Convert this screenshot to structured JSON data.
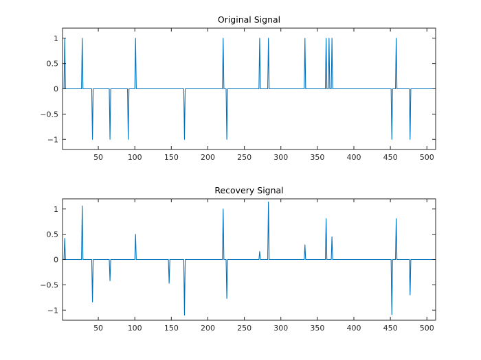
{
  "chart_data": [
    {
      "type": "line",
      "title": "Original Signal",
      "xlabel": "",
      "ylabel": "",
      "xlim": [
        1,
        512
      ],
      "ylim": [
        -1.2,
        1.2
      ],
      "xticks": [
        50,
        100,
        150,
        200,
        250,
        300,
        350,
        400,
        450,
        500
      ],
      "xtick_labels": [
        "50",
        "100",
        "150",
        "200",
        "250",
        "300",
        "350",
        "400",
        "450",
        "500"
      ],
      "yticks": [
        -1,
        -0.5,
        0,
        0.5,
        1
      ],
      "ytick_labels": [
        "−1",
        "−0.5",
        "0",
        "0.5",
        "1"
      ],
      "grid": false,
      "color": "#0072BD",
      "series": [
        {
          "name": "Original Signal",
          "spikes": [
            {
              "x": 4,
              "y": 1
            },
            {
              "x": 28,
              "y": 1
            },
            {
              "x": 42,
              "y": -1
            },
            {
              "x": 66,
              "y": -1
            },
            {
              "x": 91,
              "y": -1
            },
            {
              "x": 101,
              "y": 1
            },
            {
              "x": 168,
              "y": -1
            },
            {
              "x": 221,
              "y": 1
            },
            {
              "x": 226,
              "y": -1
            },
            {
              "x": 271,
              "y": 1
            },
            {
              "x": 283,
              "y": 1
            },
            {
              "x": 333,
              "y": 1
            },
            {
              "x": 362,
              "y": 1
            },
            {
              "x": 366,
              "y": 1
            },
            {
              "x": 370,
              "y": 1
            },
            {
              "x": 452,
              "y": -1
            },
            {
              "x": 458,
              "y": 1
            },
            {
              "x": 477,
              "y": -1
            }
          ]
        }
      ]
    },
    {
      "type": "line",
      "title": "Recovery Signal",
      "xlabel": "",
      "ylabel": "",
      "xlim": [
        1,
        512
      ],
      "ylim": [
        -1.2,
        1.2
      ],
      "xticks": [
        50,
        100,
        150,
        200,
        250,
        300,
        350,
        400,
        450,
        500
      ],
      "xtick_labels": [
        "50",
        "100",
        "150",
        "200",
        "250",
        "300",
        "350",
        "400",
        "450",
        "500"
      ],
      "yticks": [
        -1,
        -0.5,
        0,
        0.5,
        1
      ],
      "ytick_labels": [
        "−1",
        "−0.5",
        "0",
        "0.5",
        "1"
      ],
      "grid": false,
      "color": "#0072BD",
      "series": [
        {
          "name": "Recovery Signal",
          "spikes": [
            {
              "x": 4,
              "y": 0.42
            },
            {
              "x": 28,
              "y": 1.06
            },
            {
              "x": 42,
              "y": -0.84
            },
            {
              "x": 66,
              "y": -0.42
            },
            {
              "x": 101,
              "y": 0.5
            },
            {
              "x": 147,
              "y": -0.47
            },
            {
              "x": 168,
              "y": -1.1
            },
            {
              "x": 221,
              "y": 1.0
            },
            {
              "x": 226,
              "y": -0.77
            },
            {
              "x": 271,
              "y": 0.16
            },
            {
              "x": 283,
              "y": 1.14
            },
            {
              "x": 333,
              "y": 0.29
            },
            {
              "x": 362,
              "y": 0.81
            },
            {
              "x": 370,
              "y": 0.45
            },
            {
              "x": 452,
              "y": -1.09
            },
            {
              "x": 458,
              "y": 0.81
            },
            {
              "x": 477,
              "y": -0.7
            }
          ]
        }
      ]
    }
  ]
}
